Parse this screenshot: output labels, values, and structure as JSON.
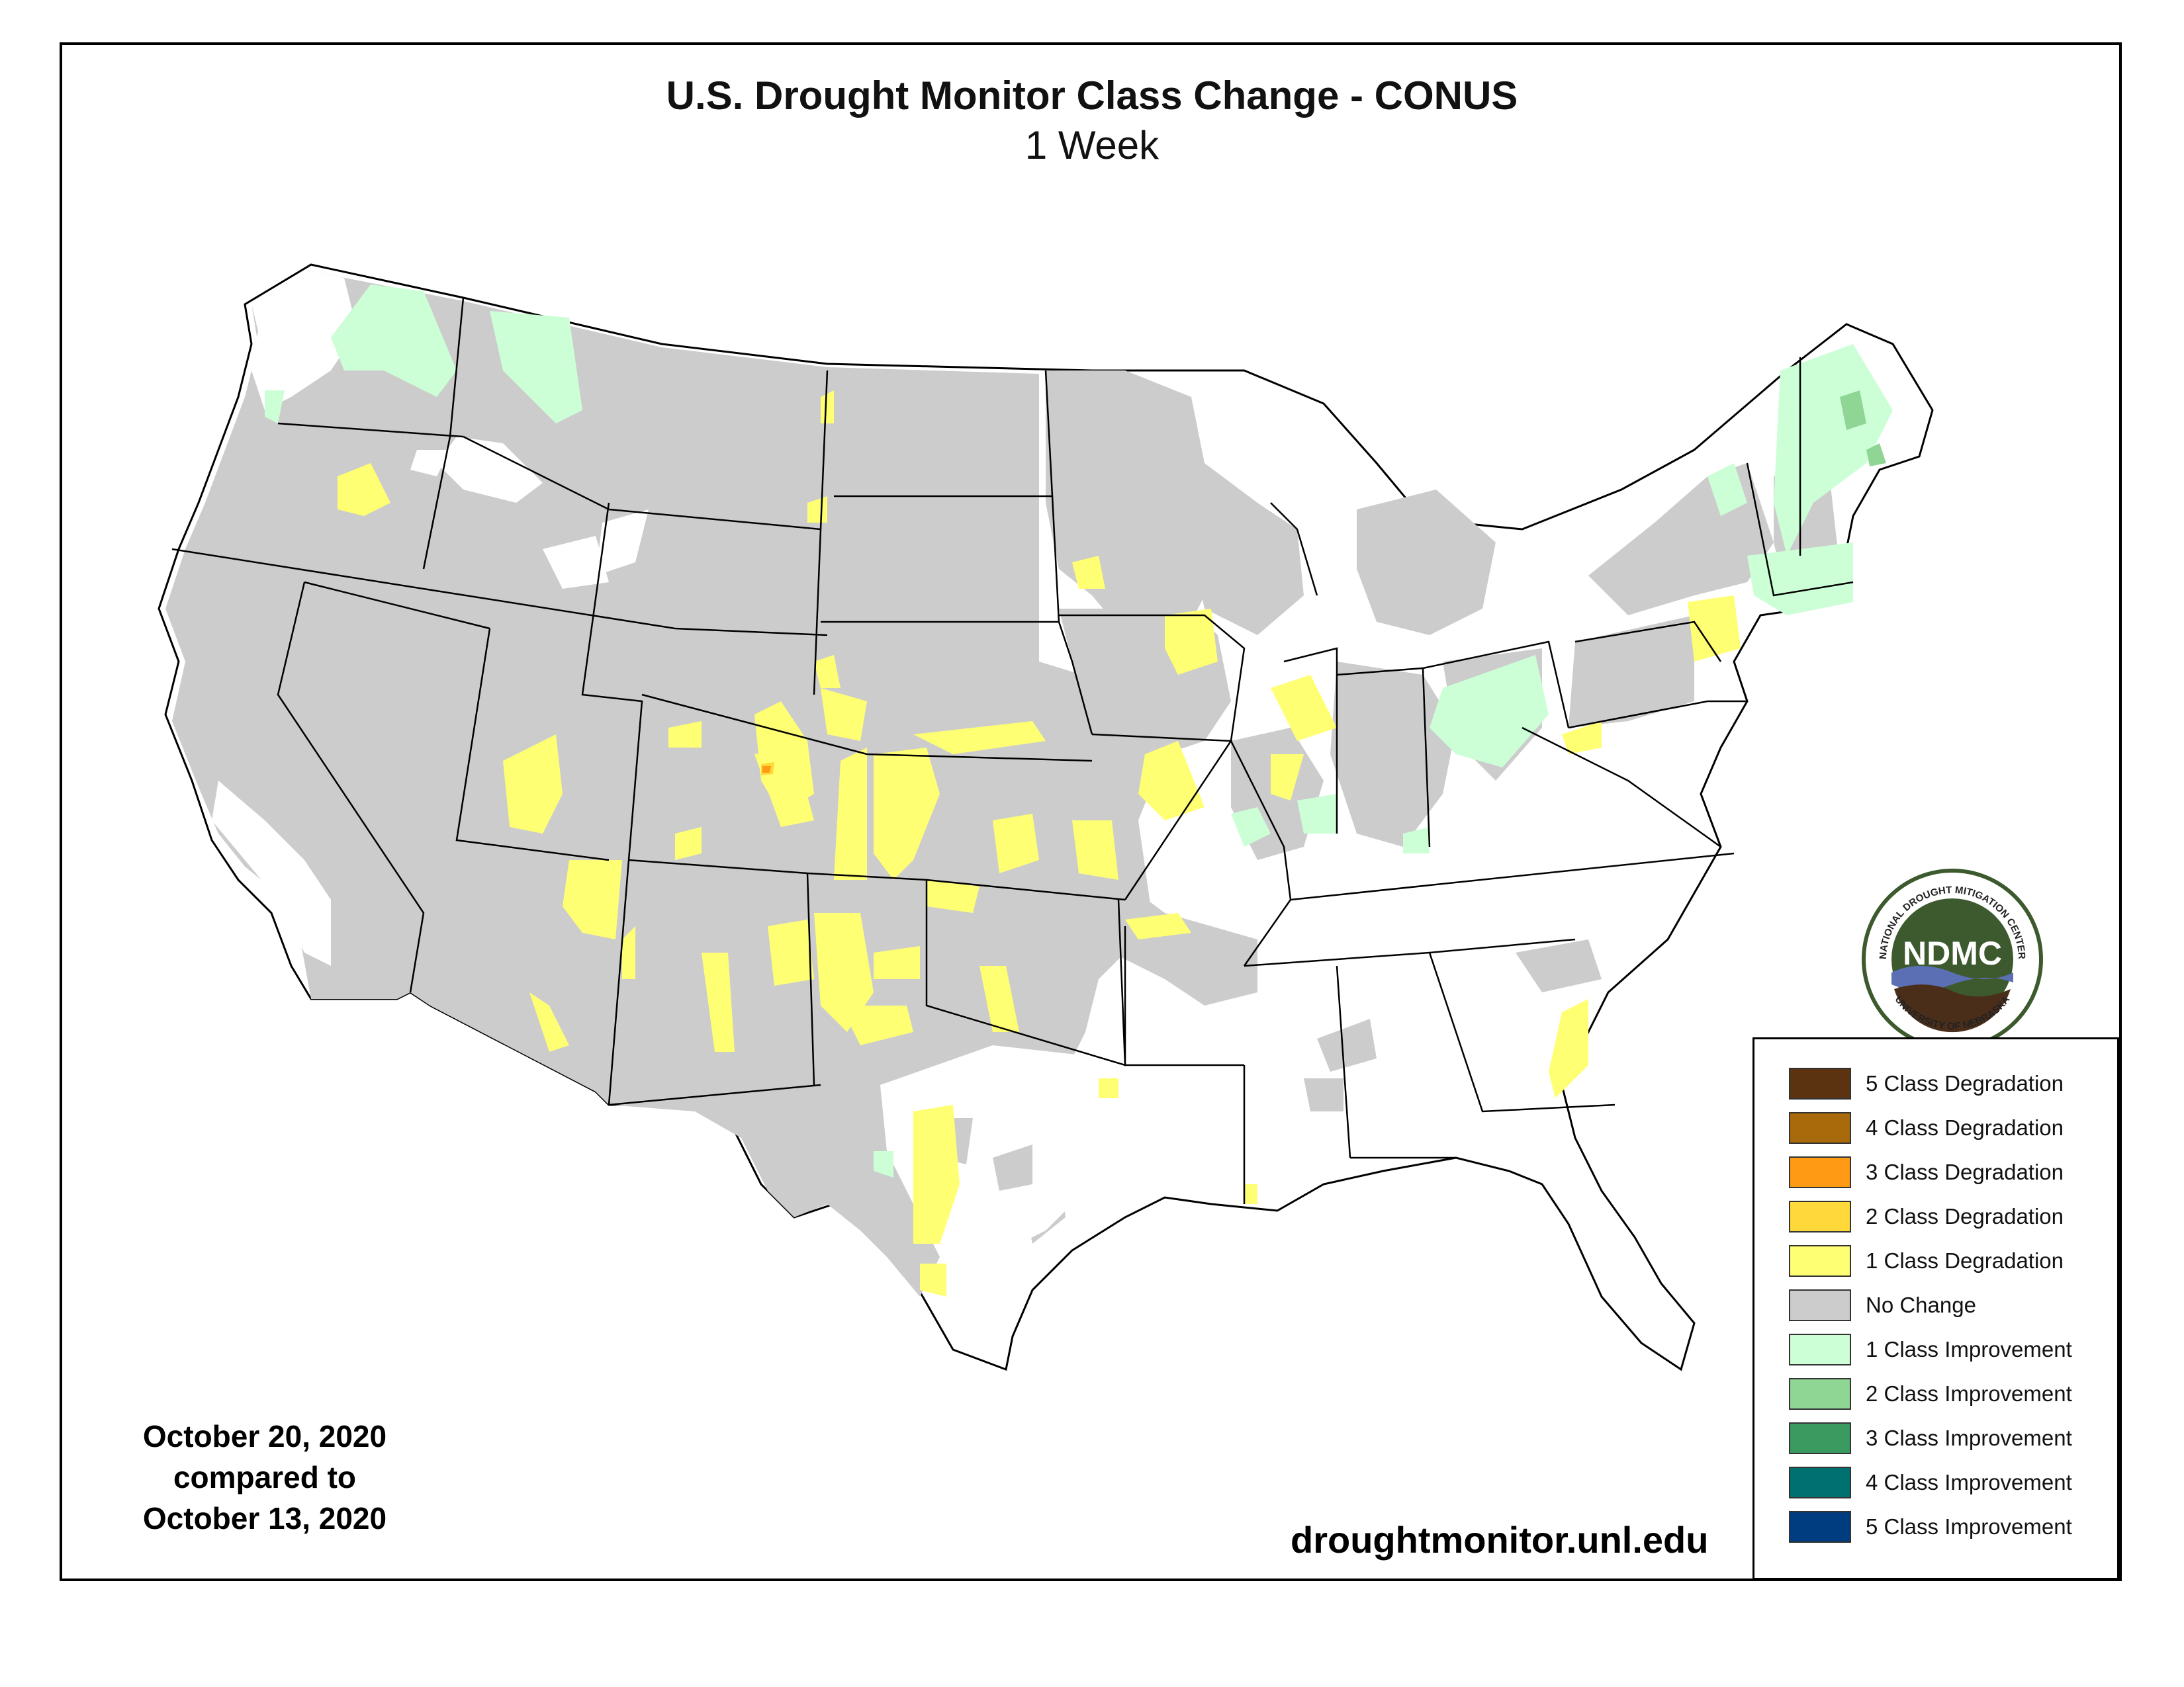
{
  "header": {
    "title": "U.S. Drought Monitor Class Change - CONUS",
    "subtitle": "1 Week"
  },
  "dates": {
    "line1": "October 20, 2020",
    "line2": "compared to",
    "line3": "October 13, 2020"
  },
  "footer": {
    "url": "droughtmonitor.unl.edu"
  },
  "logo": {
    "abbrev": "NDMC",
    "ring_top": "NATIONAL DROUGHT MITIGATION CENTER",
    "ring_bottom": "UNIVERSITY OF NEBRASKA",
    "colors": {
      "ring": "#ffffff",
      "body": "#3d5a2e",
      "water": "#5b6fb5",
      "soil": "#4a2e1a"
    }
  },
  "legend": {
    "items": [
      {
        "label": "5 Class Degradation",
        "color": "#5b3311"
      },
      {
        "label": "4 Class Degradation",
        "color": "#a86a0a"
      },
      {
        "label": "3 Class Degradation",
        "color": "#ff9a14"
      },
      {
        "label": "2 Class Degradation",
        "color": "#ffd83a"
      },
      {
        "label": "1 Class Degradation",
        "color": "#ffff73"
      },
      {
        "label": "No Change",
        "color": "#cccccc"
      },
      {
        "label": "1 Class Improvement",
        "color": "#ccffd6"
      },
      {
        "label": "2 Class Improvement",
        "color": "#8fd694"
      },
      {
        "label": "3 Class Improvement",
        "color": "#3a9a60"
      },
      {
        "label": "4 Class Improvement",
        "color": "#007070"
      },
      {
        "label": "5 Class Improvement",
        "color": "#003c80"
      }
    ]
  },
  "map_colors": {
    "no_change": "#cccccc",
    "degrade1": "#ffff73",
    "improve1": "#ccffd6",
    "improve2": "#8fd694",
    "unchanged_white": "#ffffff",
    "border": "#000000"
  }
}
